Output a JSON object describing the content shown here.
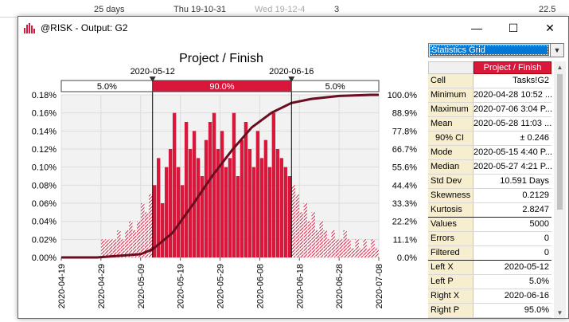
{
  "background_row": [
    "25 days",
    "Thu 19-10-31",
    "Wed 19-12-4",
    "3",
    "22.5"
  ],
  "window": {
    "title": "@RISK - Output: G2",
    "minimize_glyph": "—",
    "maximize_glyph": "☐",
    "close_glyph": "✕",
    "icon": "risk-histogram-icon"
  },
  "chart_data": {
    "type": "bar",
    "title": "Project / Finish",
    "x_tick_labels": [
      "2020-04-19",
      "2020-04-29",
      "2020-05-09",
      "2020-05-19",
      "2020-05-29",
      "2020-06-08",
      "2020-06-18",
      "2020-06-28",
      "2020-07-08"
    ],
    "xlim": [
      "2020-04-19",
      "2020-07-08"
    ],
    "y_left_ticks": [
      "0.00%",
      "0.02%",
      "0.04%",
      "0.06%",
      "0.08%",
      "0.10%",
      "0.12%",
      "0.14%",
      "0.16%",
      "0.18%"
    ],
    "y_left_lim": [
      0,
      0.18
    ],
    "y_right_ticks": [
      "0.0%",
      "11.1%",
      "22.2%",
      "33.3%",
      "44.4%",
      "55.6%",
      "66.7%",
      "77.8%",
      "88.9%",
      "100.0%"
    ],
    "y_right_lim": [
      0,
      100
    ],
    "delimiters": {
      "left": "2020-05-12",
      "right": "2020-06-16"
    },
    "bands": {
      "left_pct": "5.0%",
      "middle_pct": "90.0%",
      "right_pct": "5.0%"
    },
    "bar_color": "#d9173a",
    "cumulative_color": "#6b0d1e",
    "grid": true,
    "series": [
      {
        "type": "histogram",
        "start": "2020-04-19",
        "days": 80,
        "values": [
          0,
          0,
          0,
          0,
          0,
          0,
          0,
          0,
          0,
          0,
          0.02,
          0.02,
          0.02,
          0.02,
          0.03,
          0.02,
          0.03,
          0.04,
          0.03,
          0.04,
          0.06,
          0.05,
          0.07,
          0.08,
          0.11,
          0.06,
          0.1,
          0.12,
          0.16,
          0.1,
          0.08,
          0.15,
          0.12,
          0.14,
          0.11,
          0.09,
          0.13,
          0.15,
          0.16,
          0.12,
          0.14,
          0.1,
          0.11,
          0.16,
          0.09,
          0.13,
          0.15,
          0.12,
          0.1,
          0.14,
          0.11,
          0.13,
          0.1,
          0.16,
          0.12,
          0.11,
          0.1,
          0.09,
          0.08,
          0.07,
          0.05,
          0.06,
          0.04,
          0.05,
          0.03,
          0.04,
          0.03,
          0.02,
          0.03,
          0.02,
          0.02,
          0.03,
          0.02,
          0.01,
          0.02,
          0.01,
          0.02,
          0.01,
          0.02,
          0.01
        ]
      },
      {
        "type": "cumulative",
        "points": [
          [
            "2020-04-19",
            0
          ],
          [
            "2020-04-28",
            0
          ],
          [
            "2020-05-09",
            2
          ],
          [
            "2020-05-12",
            5
          ],
          [
            "2020-05-17",
            15
          ],
          [
            "2020-05-22",
            32
          ],
          [
            "2020-05-27",
            50
          ],
          [
            "2020-06-01",
            66
          ],
          [
            "2020-06-06",
            80
          ],
          [
            "2020-06-11",
            89
          ],
          [
            "2020-06-16",
            95
          ],
          [
            "2020-06-21",
            97.5
          ],
          [
            "2020-06-28",
            99.3
          ],
          [
            "2020-07-06",
            100
          ],
          [
            "2020-07-08",
            100
          ]
        ]
      }
    ]
  },
  "stats_panel": {
    "dropdown_value": "Statistics Grid",
    "column_header": "Project / Finish",
    "rows": [
      {
        "label": "Cell",
        "value": "Tasks!G2"
      },
      {
        "label": "Minimum",
        "value": "2020-04-28 10:52 ..."
      },
      {
        "label": "Maximum",
        "value": "2020-07-06 3:04 P..."
      },
      {
        "label": "Mean",
        "value": "2020-05-28 11:03 ..."
      },
      {
        "label": "90% CI",
        "value": "± 0.246"
      },
      {
        "label": "Mode",
        "value": "2020-05-15 4:40 P..."
      },
      {
        "label": "Median",
        "value": "2020-05-27 4:21 P..."
      },
      {
        "label": "Std Dev",
        "value": "10.591 Days"
      },
      {
        "label": "Skewness",
        "value": "0.2129"
      },
      {
        "label": "Kurtosis",
        "value": "2.8247"
      },
      {
        "label": "Values",
        "value": "5000"
      },
      {
        "label": "Errors",
        "value": "0"
      },
      {
        "label": "Filtered",
        "value": "0"
      },
      {
        "label": "Left X",
        "value": "2020-05-12"
      },
      {
        "label": "Left P",
        "value": "5.0%"
      },
      {
        "label": "Right X",
        "value": "2020-06-16"
      },
      {
        "label": "Right P",
        "value": "95.0%"
      }
    ]
  }
}
